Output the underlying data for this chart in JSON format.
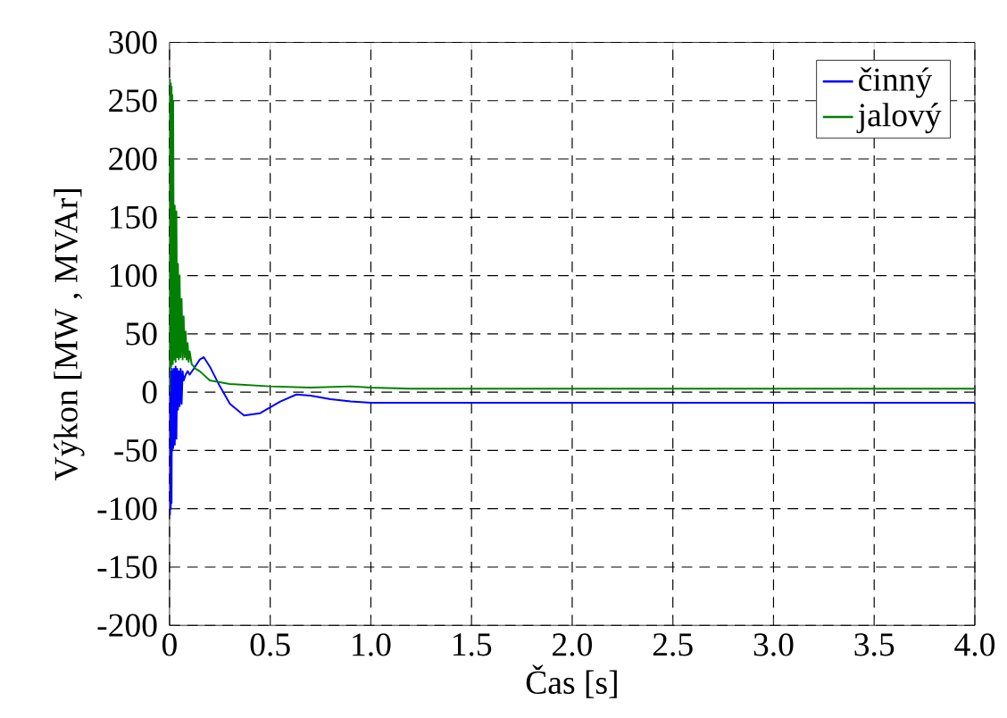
{
  "chart_data": {
    "type": "line",
    "xlabel": "Čas [s]",
    "ylabel": "Výkon [MW , MVAr]",
    "xlim": [
      0,
      4
    ],
    "ylim": [
      -200,
      300
    ],
    "xticks": [
      0,
      0.5,
      {
        "value": 1,
        "label": "1.0"
      },
      1.5,
      {
        "value": 2,
        "label": "2.0"
      },
      2.5,
      {
        "value": 3,
        "label": "3.0"
      },
      3.5,
      {
        "value": 4,
        "label": "4.0"
      }
    ],
    "yticks": [
      -200,
      -150,
      -100,
      -50,
      0,
      50,
      100,
      150,
      200,
      250,
      300
    ],
    "grid": true,
    "legend": "top right",
    "marker": "none",
    "line_style": "solid",
    "series": [
      {
        "name": "činný",
        "color": "#0000ff",
        "x": [
          0,
          0.002,
          0.004,
          0.006,
          0.008,
          0.01,
          0.012,
          0.014,
          0.016,
          0.018,
          0.022,
          0.026,
          0.03,
          0.034,
          0.038,
          0.042,
          0.046,
          0.05,
          0.055,
          0.06,
          0.065,
          0.07,
          0.08,
          0.09,
          0.1,
          0.12,
          0.15,
          0.17,
          0.2,
          0.25,
          0.3,
          0.37,
          0.45,
          0.55,
          0.63,
          0.7,
          0.8,
          0.9,
          1.0,
          1.2,
          1.5,
          2.0,
          3.0,
          4.0
        ],
        "values": [
          0,
          -105,
          15,
          -100,
          18,
          -95,
          20,
          -50,
          18,
          -48,
          20,
          -45,
          22,
          -40,
          20,
          -15,
          18,
          -12,
          20,
          -10,
          18,
          10,
          15,
          18,
          15,
          20,
          28,
          30,
          22,
          5,
          -10,
          -20,
          -18,
          -8,
          -2,
          -3,
          -6,
          -8,
          -9,
          -9,
          -9,
          -9,
          -9,
          -9
        ]
      },
      {
        "name": "jalový",
        "color": "#008000",
        "x": [
          0,
          0.002,
          0.004,
          0.006,
          0.008,
          0.01,
          0.012,
          0.014,
          0.016,
          0.018,
          0.022,
          0.026,
          0.03,
          0.034,
          0.038,
          0.042,
          0.046,
          0.05,
          0.055,
          0.06,
          0.065,
          0.07,
          0.075,
          0.08,
          0.085,
          0.09,
          0.095,
          0.1,
          0.11,
          0.12,
          0.13,
          0.15,
          0.2,
          0.3,
          0.5,
          0.7,
          0.9,
          1.0,
          1.2,
          1.5,
          2.0,
          3.0,
          4.0
        ],
        "values": [
          0,
          268,
          20,
          265,
          22,
          262,
          25,
          255,
          24,
          250,
          28,
          160,
          26,
          155,
          30,
          110,
          28,
          100,
          30,
          80,
          28,
          65,
          30,
          52,
          28,
          42,
          26,
          35,
          24,
          22,
          20,
          18,
          10,
          7,
          5,
          4,
          5,
          4,
          3,
          3,
          3,
          3,
          3
        ]
      }
    ]
  }
}
